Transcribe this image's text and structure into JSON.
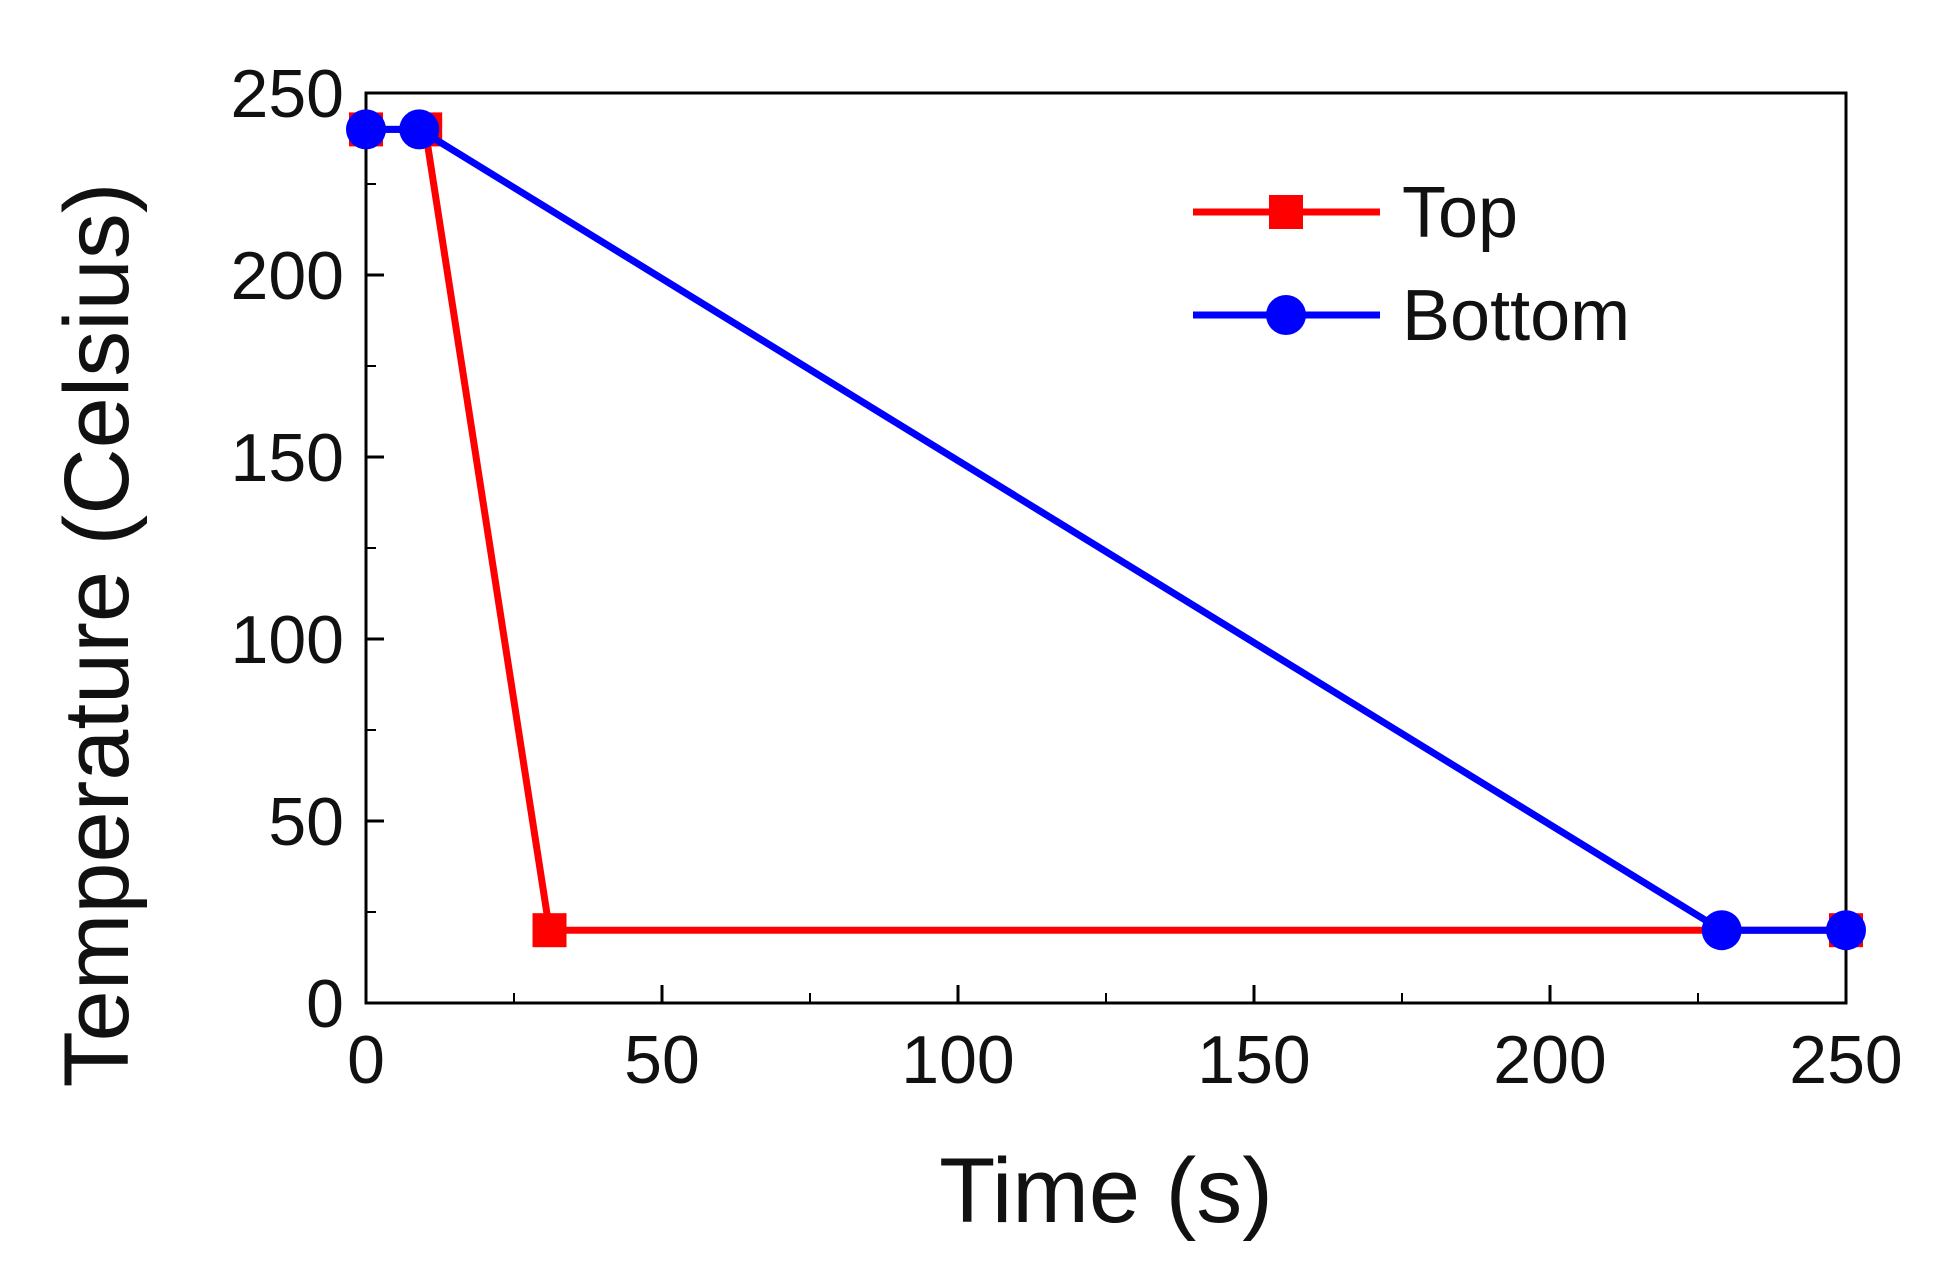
{
  "chart_data": {
    "type": "line",
    "title": "",
    "xlabel": "Time (s)",
    "ylabel": "Temperature (Celsius)",
    "xlim": [
      0,
      250
    ],
    "ylim": [
      0,
      250
    ],
    "xticks": [
      0,
      50,
      100,
      150,
      200,
      250
    ],
    "yticks": [
      0,
      50,
      100,
      150,
      200,
      250
    ],
    "grid": false,
    "legend_position": "top-right",
    "series": [
      {
        "name": "Top",
        "color": "#ff0000",
        "marker": "square",
        "points": [
          [
            0,
            240
          ],
          [
            10,
            240
          ],
          [
            31,
            20
          ],
          [
            250,
            20
          ]
        ]
      },
      {
        "name": "Bottom",
        "color": "#0000ff",
        "marker": "circle",
        "points": [
          [
            0,
            240
          ],
          [
            9,
            240
          ],
          [
            229,
            20
          ],
          [
            250,
            20
          ]
        ]
      }
    ]
  }
}
